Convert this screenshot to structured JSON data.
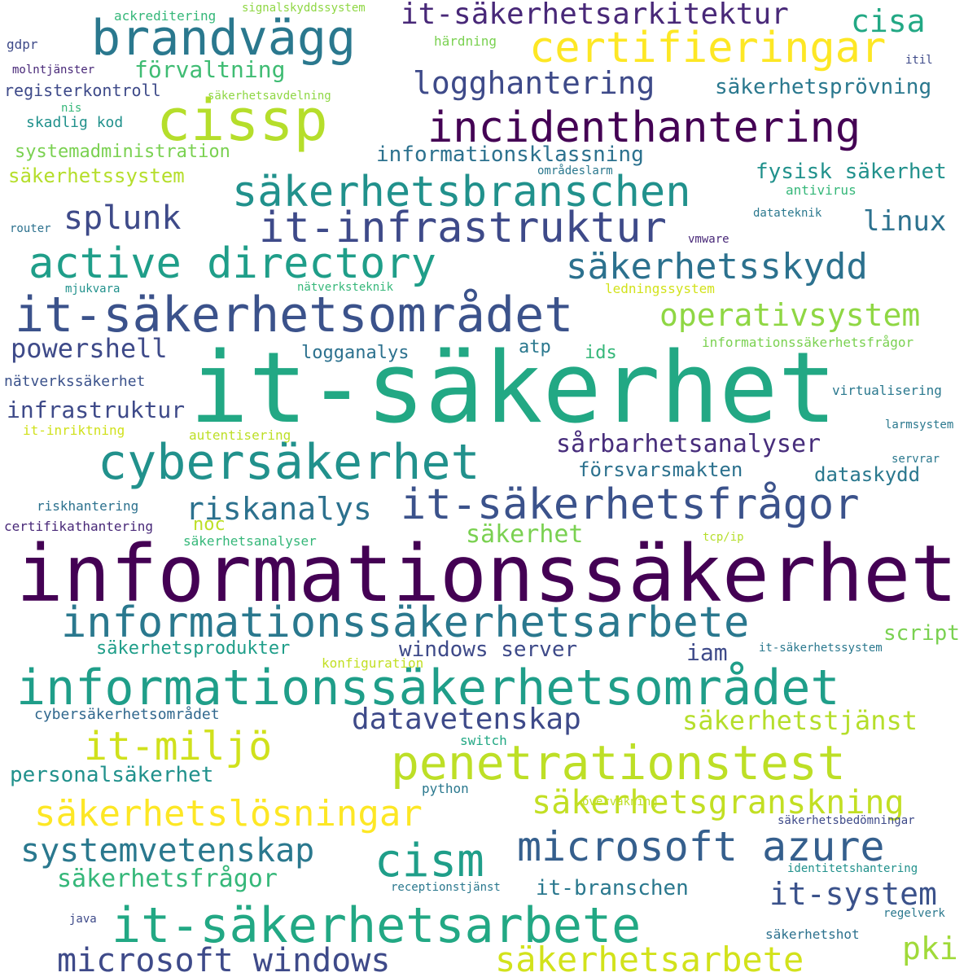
{
  "words": [
    {
      "text": "it-säkerhet",
      "color": "#22a884"
    },
    {
      "text": "informationssäkerhet",
      "color": "#440154"
    },
    {
      "text": "informationssäkerhetsområdet",
      "color": "#1f9e89"
    },
    {
      "text": "informationssäkerhetsarbete",
      "color": "#2a788e"
    },
    {
      "text": "it-säkerhetsarbete",
      "color": "#22a884"
    },
    {
      "text": "cybersäkerhet",
      "color": "#21918c"
    },
    {
      "text": "it-säkerhetsområdet",
      "color": "#3b528b"
    },
    {
      "text": "penetrationstest",
      "color": "#bddf26"
    },
    {
      "text": "incidenthantering",
      "color": "#440154"
    },
    {
      "text": "brandvägg",
      "color": "#2a788e"
    },
    {
      "text": "cissp",
      "color": "#b5de2b"
    },
    {
      "text": "säkerhetsbranschen",
      "color": "#21918c"
    },
    {
      "text": "it-infrastruktur",
      "color": "#3e4a89"
    },
    {
      "text": "active directory",
      "color": "#1f9e89"
    },
    {
      "text": "certifieringar",
      "color": "#fde725"
    },
    {
      "text": "it-säkerhetsfrågor",
      "color": "#3b528b"
    },
    {
      "text": "microsoft azure",
      "color": "#355f8d"
    },
    {
      "text": "säkerhetsskydd",
      "color": "#2c718e"
    },
    {
      "text": "it-säkerhetsarkitektur",
      "color": "#482878"
    },
    {
      "text": "logghantering",
      "color": "#3e4a89"
    },
    {
      "text": "cism",
      "color": "#1f9e89"
    },
    {
      "text": "säkerhetslösningar",
      "color": "#fde725"
    },
    {
      "text": "säkerhetsgranskning",
      "color": "#c2df23"
    },
    {
      "text": "it-miljö",
      "color": "#d0e11c"
    },
    {
      "text": "microsoft windows",
      "color": "#3e4a89"
    },
    {
      "text": "säkerhetsarbete",
      "color": "#d2e21b"
    },
    {
      "text": "systemvetenskap",
      "color": "#2a788e"
    },
    {
      "text": "datavetenskap",
      "color": "#3e4a89"
    },
    {
      "text": "sårbarhetsanalyser",
      "color": "#472d7b"
    },
    {
      "text": "riskanalys",
      "color": "#2c718e"
    },
    {
      "text": "splunk",
      "color": "#3e4a89"
    },
    {
      "text": "operativsystem",
      "color": "#8fd744"
    },
    {
      "text": "säkerhetstjänst",
      "color": "#b5de2b"
    },
    {
      "text": "it-system",
      "color": "#3b528b"
    },
    {
      "text": "linux",
      "color": "#2c718e"
    },
    {
      "text": "cisa",
      "color": "#22a884"
    },
    {
      "text": "pki",
      "color": "#a0da39"
    },
    {
      "text": "säkerhetsfrågor",
      "color": "#35b779"
    },
    {
      "text": "powershell",
      "color": "#3e4a89"
    },
    {
      "text": "säkerhet",
      "color": "#7ad151"
    },
    {
      "text": "infrastruktur",
      "color": "#3e4a89"
    },
    {
      "text": "förvaltning",
      "color": "#3fbc73"
    },
    {
      "text": "säkerhetsprövning",
      "color": "#2a788e"
    },
    {
      "text": "informationsklassning",
      "color": "#2c718e"
    },
    {
      "text": "fysisk säkerhet",
      "color": "#21918c"
    },
    {
      "text": "windows server",
      "color": "#3e4a89"
    },
    {
      "text": "it-branschen",
      "color": "#2a788e"
    },
    {
      "text": "personalsäkerhet",
      "color": "#21918c"
    },
    {
      "text": "försvarsmakten",
      "color": "#2c718e"
    },
    {
      "text": "dataskydd",
      "color": "#2a788e"
    },
    {
      "text": "säkerhetsprodukter",
      "color": "#1f9e89"
    },
    {
      "text": "iam",
      "color": "#3e4a89"
    },
    {
      "text": "script",
      "color": "#7ad151"
    },
    {
      "text": "logganalys",
      "color": "#2c718e"
    },
    {
      "text": "atp",
      "color": "#2a788e"
    },
    {
      "text": "ids",
      "color": "#35b779"
    },
    {
      "text": "noc",
      "color": "#bddf26"
    },
    {
      "text": "säkerhetssystem",
      "color": "#b5de2b"
    },
    {
      "text": "systemadministration",
      "color": "#7ad151"
    },
    {
      "text": "cybersäkerhetsområdet",
      "color": "#31688e"
    },
    {
      "text": "nätverkssäkerhet",
      "color": "#3b528b"
    },
    {
      "text": "registerkontroll",
      "color": "#3e4a89"
    },
    {
      "text": "skadlig kod",
      "color": "#21918c"
    },
    {
      "text": "riskhantering",
      "color": "#2c718e"
    },
    {
      "text": "certifikathantering",
      "color": "#482878"
    },
    {
      "text": "säkerhetsanalyser",
      "color": "#35b779"
    },
    {
      "text": "ackreditering",
      "color": "#35b779"
    },
    {
      "text": "signalskyddssystem",
      "color": "#8fd744"
    },
    {
      "text": "härdning",
      "color": "#7ad151"
    },
    {
      "text": "gdpr",
      "color": "#3e4a89"
    },
    {
      "text": "molntjänster",
      "color": "#482878"
    },
    {
      "text": "säkerhetsavdelning",
      "color": "#8fd744"
    },
    {
      "text": "nis",
      "color": "#35b779"
    },
    {
      "text": "itil",
      "color": "#3e4a89"
    },
    {
      "text": "områdeslarm",
      "color": "#2a788e"
    },
    {
      "text": "antivirus",
      "color": "#35b779"
    },
    {
      "text": "router",
      "color": "#2c718e"
    },
    {
      "text": "datateknik",
      "color": "#2a788e"
    },
    {
      "text": "vmware",
      "color": "#482878"
    },
    {
      "text": "mjukvara",
      "color": "#21918c"
    },
    {
      "text": "nätverksteknik",
      "color": "#35b779"
    },
    {
      "text": "ledningssystem",
      "color": "#d2e21b"
    },
    {
      "text": "informationssäkerhetsfrågor",
      "color": "#7ad151"
    },
    {
      "text": "virtualisering",
      "color": "#2a788e"
    },
    {
      "text": "it-inriktning",
      "color": "#d0e11c"
    },
    {
      "text": "autentisering",
      "color": "#bddf26"
    },
    {
      "text": "larmsystem",
      "color": "#2a788e"
    },
    {
      "text": "servrar",
      "color": "#2a788e"
    },
    {
      "text": "tcp/ip",
      "color": "#b5de2b"
    },
    {
      "text": "konfiguration",
      "color": "#c2df23"
    },
    {
      "text": "it-säkerhetssystem",
      "color": "#2a788e"
    },
    {
      "text": "switch",
      "color": "#22a884"
    },
    {
      "text": "python",
      "color": "#2a788e"
    },
    {
      "text": "övervakning",
      "color": "#bddf26"
    },
    {
      "text": "säkerhetsbedömningar",
      "color": "#3e4a89"
    },
    {
      "text": "identitetshantering",
      "color": "#21918c"
    },
    {
      "text": "receptionstjänst",
      "color": "#2a788e"
    },
    {
      "text": "java",
      "color": "#3e4a89"
    },
    {
      "text": "regelverk",
      "color": "#2a788e"
    },
    {
      "text": "säkerhetshot",
      "color": "#2c718e"
    }
  ]
}
